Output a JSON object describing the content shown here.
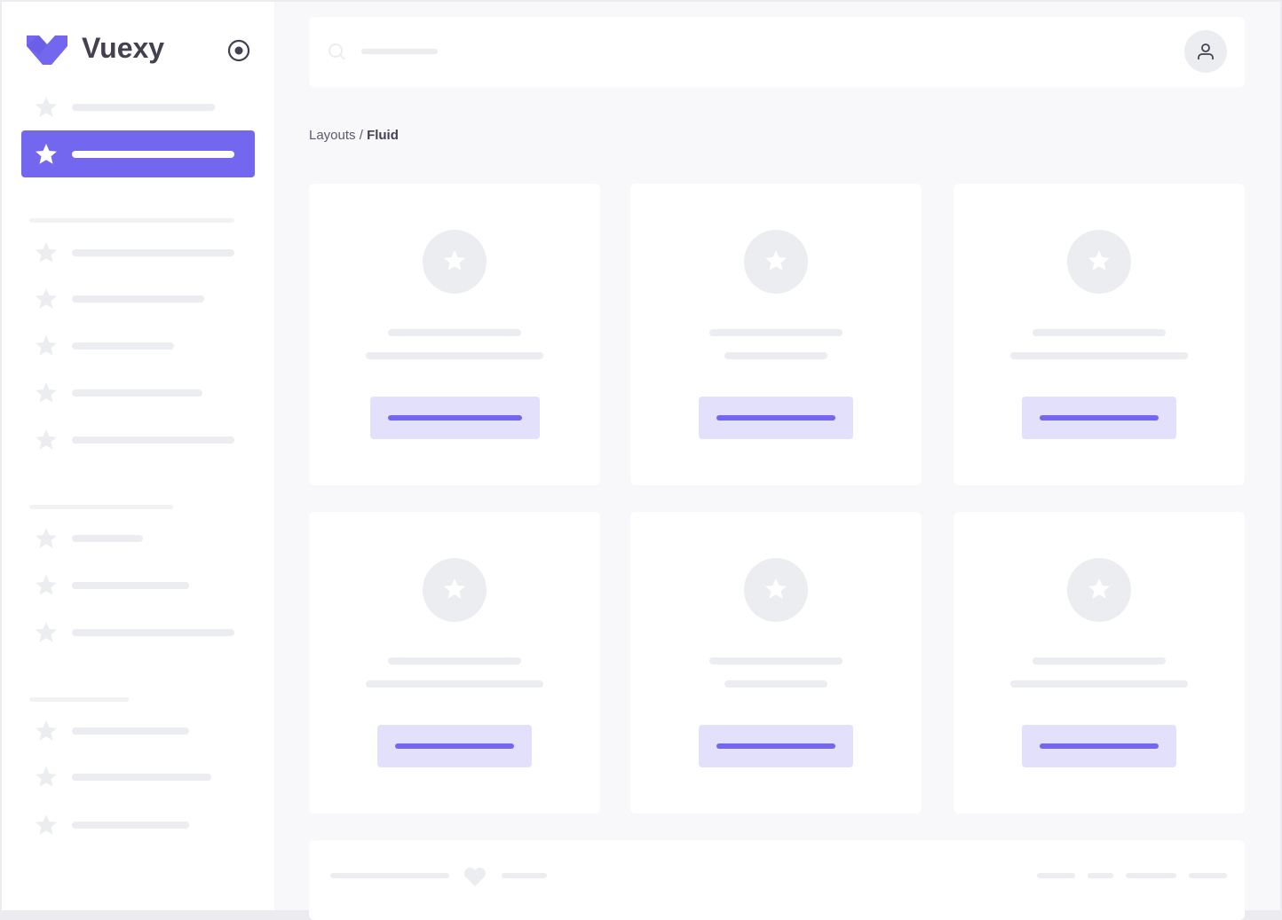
{
  "brand": {
    "name": "Vuexy",
    "color": "#7367f0"
  },
  "sidebar": {
    "toggle_icon": "radio-circle-icon",
    "items": [
      {
        "icon": "star-icon",
        "active": false
      },
      {
        "icon": "star-icon",
        "active": true
      },
      {
        "icon": "star-icon"
      },
      {
        "icon": "star-icon"
      },
      {
        "icon": "star-icon"
      },
      {
        "icon": "star-icon"
      },
      {
        "icon": "star-icon"
      },
      {
        "icon": "star-icon"
      },
      {
        "icon": "star-icon"
      },
      {
        "icon": "star-icon"
      },
      {
        "icon": "star-icon"
      },
      {
        "icon": "star-icon"
      },
      {
        "icon": "star-icon"
      }
    ]
  },
  "navbar": {
    "search_icon": "search-icon",
    "avatar_icon": "user-icon"
  },
  "breadcrumb": {
    "parent": "Layouts",
    "separator": " / ",
    "current": "Fluid"
  },
  "cards": {
    "count": 6,
    "icon": "star-icon"
  },
  "footer": {
    "icon": "heart-icon"
  }
}
